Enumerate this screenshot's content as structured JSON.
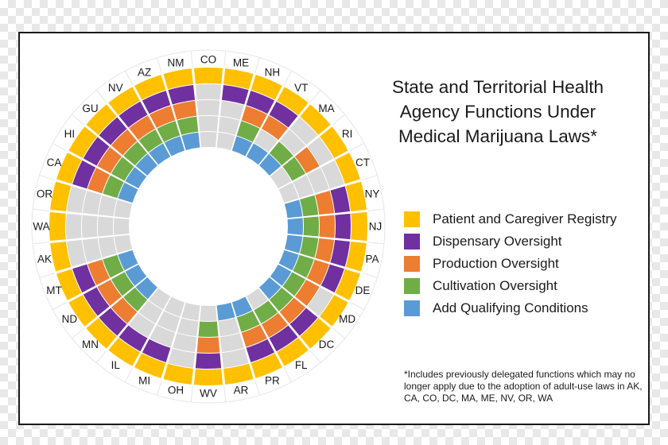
{
  "chart_data": {
    "type": "radial-heatmap",
    "title": "State and Territorial Health Agency Functions Under Medical Marijuana Laws*",
    "title_lines": [
      "State and Territorial Health",
      "Agency Functions Under",
      "Medical Marijuana Laws*"
    ],
    "footnote": "*Includes previously delegated functions which may no longer apply due to the adoption of adult-use laws in AK, CA, CO, DC, MA, ME, NV, OR, WA",
    "functions": [
      {
        "name": "Patient and Caregiver Registry",
        "color": "#FFC000"
      },
      {
        "name": "Dispensary Oversight",
        "color": "#7030A0"
      },
      {
        "name": "Production Oversight",
        "color": "#ED7D31"
      },
      {
        "name": "Cultivation Oversight",
        "color": "#70AD47"
      },
      {
        "name": "Add Qualifying Conditions",
        "color": "#5B9BD5"
      }
    ],
    "empty_color": "#D9D9D9",
    "states": [
      {
        "name": "CO",
        "functions": [
          1,
          0,
          0,
          0,
          0
        ]
      },
      {
        "name": "ME",
        "functions": [
          1,
          1,
          0,
          0,
          0
        ]
      },
      {
        "name": "NH",
        "functions": [
          1,
          1,
          1,
          1,
          1
        ]
      },
      {
        "name": "VT",
        "functions": [
          1,
          1,
          1,
          0,
          1
        ]
      },
      {
        "name": "MA",
        "functions": [
          1,
          0,
          0,
          1,
          1
        ]
      },
      {
        "name": "RI",
        "functions": [
          1,
          0,
          1,
          1,
          0
        ]
      },
      {
        "name": "CT",
        "functions": [
          1,
          0,
          0,
          0,
          0
        ]
      },
      {
        "name": "NY",
        "functions": [
          1,
          1,
          1,
          1,
          1
        ]
      },
      {
        "name": "NJ",
        "functions": [
          1,
          1,
          1,
          1,
          1
        ]
      },
      {
        "name": "PA",
        "functions": [
          1,
          1,
          1,
          1,
          1
        ]
      },
      {
        "name": "DE",
        "functions": [
          1,
          1,
          1,
          1,
          1
        ]
      },
      {
        "name": "MD",
        "functions": [
          1,
          0,
          1,
          1,
          1
        ]
      },
      {
        "name": "DC",
        "functions": [
          1,
          1,
          1,
          1,
          1
        ]
      },
      {
        "name": "FL",
        "functions": [
          1,
          1,
          1,
          1,
          0
        ]
      },
      {
        "name": "PR",
        "functions": [
          1,
          1,
          1,
          1,
          1
        ]
      },
      {
        "name": "AR",
        "functions": [
          1,
          0,
          0,
          0,
          1
        ]
      },
      {
        "name": "WV",
        "functions": [
          1,
          1,
          1,
          1,
          0
        ]
      },
      {
        "name": "OH",
        "functions": [
          1,
          0,
          0,
          0,
          0
        ]
      },
      {
        "name": "MI",
        "functions": [
          1,
          1,
          0,
          0,
          0
        ]
      },
      {
        "name": "IL",
        "functions": [
          1,
          1,
          0,
          0,
          0
        ]
      },
      {
        "name": "MN",
        "functions": [
          1,
          1,
          1,
          1,
          1
        ]
      },
      {
        "name": "ND",
        "functions": [
          1,
          1,
          1,
          1,
          1
        ]
      },
      {
        "name": "MT",
        "functions": [
          1,
          1,
          1,
          1,
          1
        ]
      },
      {
        "name": "AK",
        "functions": [
          1,
          0,
          0,
          0,
          0
        ]
      },
      {
        "name": "WA",
        "functions": [
          1,
          0,
          0,
          0,
          0
        ]
      },
      {
        "name": "OR",
        "functions": [
          1,
          0,
          0,
          0,
          0
        ]
      },
      {
        "name": "CA",
        "functions": [
          1,
          1,
          1,
          1,
          1
        ]
      },
      {
        "name": "HI",
        "functions": [
          1,
          1,
          1,
          1,
          1
        ]
      },
      {
        "name": "GU",
        "functions": [
          1,
          1,
          1,
          1,
          1
        ]
      },
      {
        "name": "NV",
        "functions": [
          1,
          1,
          1,
          1,
          1
        ]
      },
      {
        "name": "AZ",
        "functions": [
          1,
          1,
          1,
          1,
          1
        ]
      },
      {
        "name": "NM",
        "functions": [
          1,
          1,
          1,
          1,
          1
        ]
      }
    ]
  }
}
